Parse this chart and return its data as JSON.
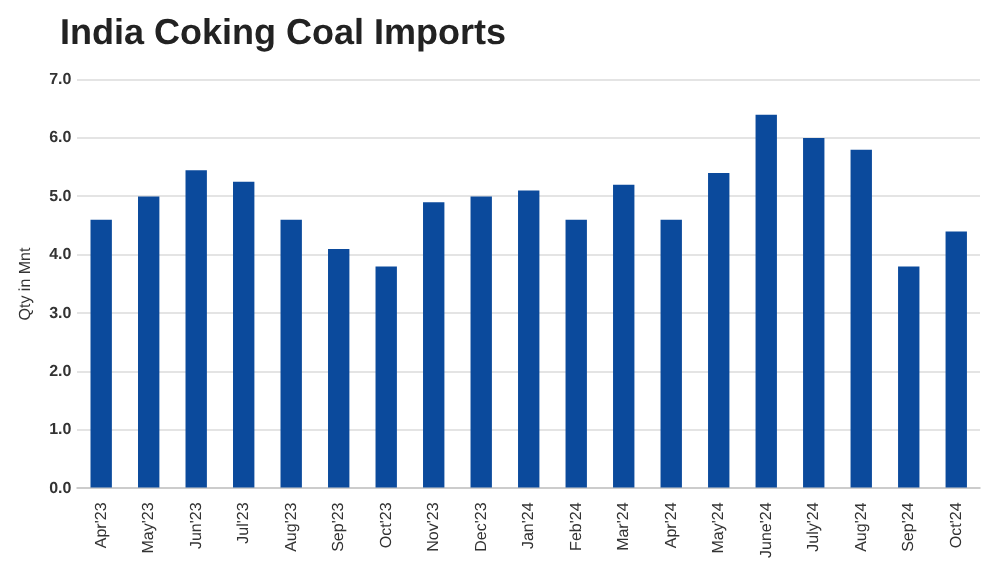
{
  "chart_data": {
    "type": "bar",
    "title": "India Coking Coal Imports",
    "ylabel": "Qty in Mnt",
    "categories": [
      "Apr'23",
      "May'23",
      "Jun'23",
      "Jul'23",
      "Aug'23",
      "Sep'23",
      "Oct'23",
      "Nov'23",
      "Dec'23",
      "Jan'24",
      "Feb'24",
      "Mar'24",
      "Apr'24",
      "May'24",
      "June'24",
      "July'24",
      "Aug'24",
      "Sep'24",
      "Oct'24"
    ],
    "values": [
      4.6,
      5.0,
      5.45,
      5.25,
      4.6,
      4.1,
      3.8,
      4.9,
      5.0,
      5.1,
      4.6,
      5.2,
      4.6,
      5.4,
      6.4,
      6.0,
      5.8,
      3.8,
      4.4
    ],
    "color": "#0b4a9c",
    "ylim": [
      0,
      7
    ],
    "yticks": [
      {
        "value": 0,
        "label": "0.0"
      },
      {
        "value": 1,
        "label": "1.0"
      },
      {
        "value": 2,
        "label": "2.0"
      },
      {
        "value": 3,
        "label": "3.0"
      },
      {
        "value": 4,
        "label": "4.0"
      },
      {
        "value": 5,
        "label": "5.0"
      },
      {
        "value": 6,
        "label": "6.0"
      },
      {
        "value": 7,
        "label": "7.0"
      }
    ],
    "grid": "y"
  }
}
